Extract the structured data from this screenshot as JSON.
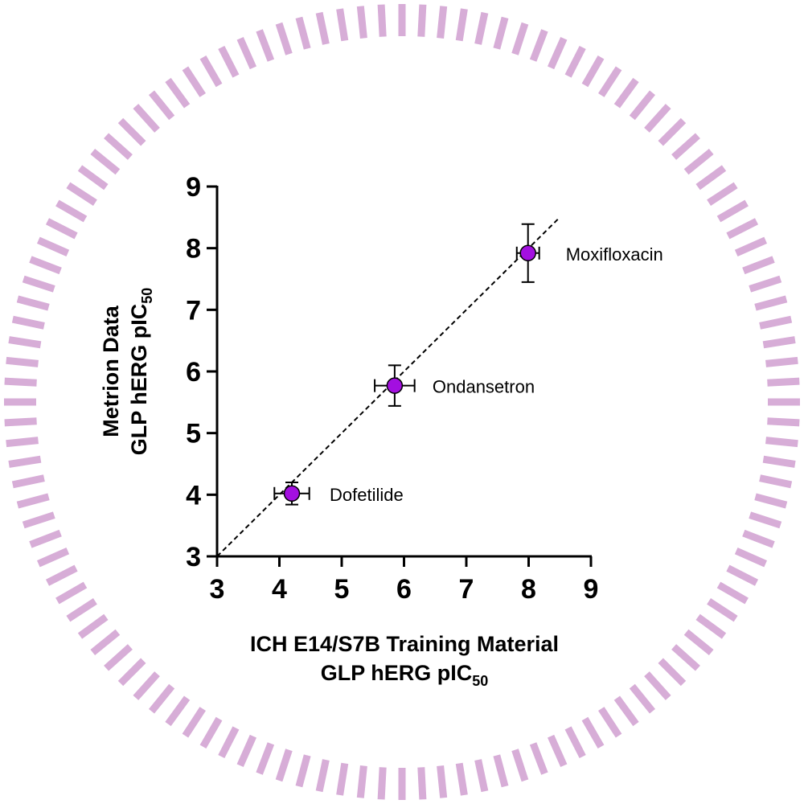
{
  "chart_data": {
    "type": "scatter",
    "xlabel_line1": "ICH E14/S7B Training Material",
    "xlabel_line2_main": "GLP hERG pIC",
    "xlabel_line2_sub": "50",
    "ylabel_line1": "Metrion Data",
    "ylabel_line2_main": "GLP hERG pIC",
    "ylabel_line2_sub": "50",
    "xlim": [
      3,
      9
    ],
    "ylim": [
      3,
      9
    ],
    "x_ticks": [
      "3",
      "4",
      "5",
      "6",
      "7",
      "8",
      "9"
    ],
    "y_ticks": [
      "3",
      "4",
      "5",
      "6",
      "7",
      "8",
      "9"
    ],
    "points": [
      {
        "label": "Dofetilide",
        "x": 4.2,
        "y": 4.02,
        "x_err": 0.28,
        "y_err": 0.18
      },
      {
        "label": "Ondansetron",
        "x": 5.85,
        "y": 5.77,
        "x_err": 0.32,
        "y_err": 0.33
      },
      {
        "label": "Moxifloxacin",
        "x": 7.99,
        "y": 7.92,
        "x_err": 0.18,
        "y_err": 0.47
      }
    ],
    "identity_line": {
      "from": 3,
      "to": 8.5
    },
    "marker_color": "#a30fe0",
    "frame_color": "#d7add7",
    "grid": false,
    "legend": "none"
  }
}
